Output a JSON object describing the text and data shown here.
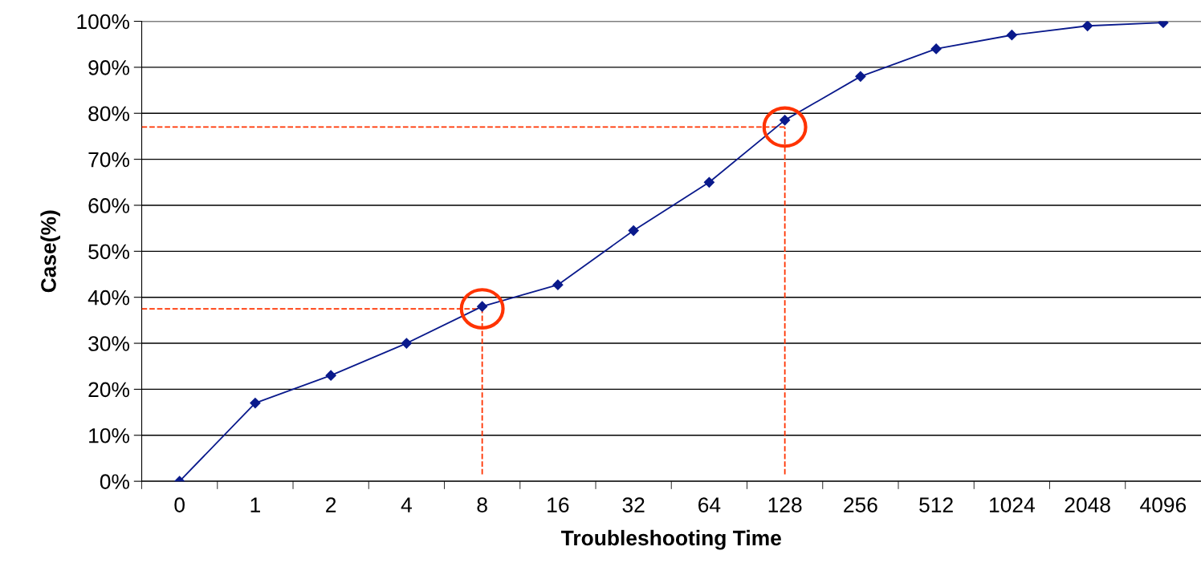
{
  "chart_data": {
    "type": "line",
    "xlabel": "Troubleshooting Time",
    "ylabel": "Case(%)",
    "categories": [
      "0",
      "1",
      "2",
      "4",
      "8",
      "16",
      "32",
      "64",
      "128",
      "256",
      "512",
      "1024",
      "2048",
      "4096"
    ],
    "series": [
      {
        "color": "#0a1a8c",
        "values": [
          0,
          17,
          23,
          30,
          38,
          42.7,
          54.5,
          65,
          78.5,
          88,
          94,
          97,
          99,
          99.7
        ]
      }
    ],
    "ylim": [
      0,
      100
    ],
    "yticks": [
      {
        "value": 0,
        "label": "0%"
      },
      {
        "value": 10,
        "label": "10%"
      },
      {
        "value": 20,
        "label": "20%"
      },
      {
        "value": 30,
        "label": "30%"
      },
      {
        "value": 40,
        "label": "40%"
      },
      {
        "value": 50,
        "label": "50%"
      },
      {
        "value": 60,
        "label": "60%"
      },
      {
        "value": 70,
        "label": "70%"
      },
      {
        "value": 80,
        "label": "80%"
      },
      {
        "value": 90,
        "label": "90%"
      },
      {
        "value": 100,
        "label": "100%"
      }
    ],
    "grid": "y",
    "marker": "diamond",
    "line_style": "solid",
    "legend": false,
    "ref_lines": [
      {
        "axis": "y",
        "value": 37.5,
        "color": "#ff3300",
        "line_style": "dashed"
      },
      {
        "axis": "x",
        "value": "8",
        "color": "#ff3300",
        "line_style": "dashed"
      },
      {
        "axis": "y",
        "value": 77,
        "color": "#ff3300",
        "line_style": "dashed"
      },
      {
        "axis": "x",
        "value": "128",
        "color": "#ff3300",
        "line_style": "dashed"
      }
    ]
  }
}
